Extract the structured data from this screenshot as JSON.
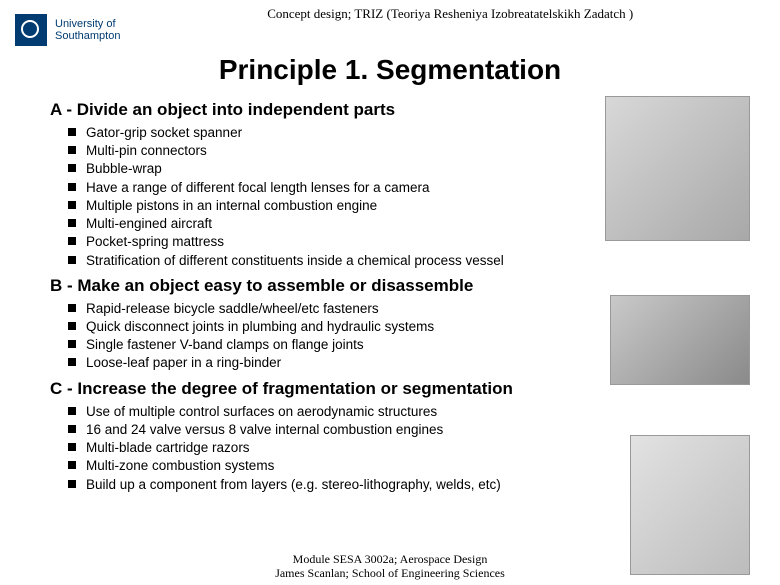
{
  "header": {
    "logo_line1": "University of",
    "logo_line2": "Southampton",
    "subtitle": "Concept design; TRIZ (Teoriya Resheniya Izobreatatelskikh Zadatch )"
  },
  "title": "Principle 1. Segmentation",
  "sections": {
    "a": {
      "heading": "A - Divide an object into independent parts",
      "items": [
        "Gator-grip socket spanner",
        "Multi-pin connectors",
        "Bubble-wrap",
        "Have a range of different focal length lenses for a camera",
        "Multiple pistons in an internal combustion engine",
        "Multi-engined aircraft",
        "Pocket-spring mattress",
        "Stratification of different constituents inside a chemical process vessel"
      ]
    },
    "b": {
      "heading": "B - Make an object easy to assemble or disassemble",
      "items": [
        "Rapid-release bicycle saddle/wheel/etc fasteners",
        "Quick disconnect joints in plumbing and hydraulic systems",
        "Single fastener V-band clamps on flange joints",
        "Loose-leaf paper in a ring-binder"
      ]
    },
    "c": {
      "heading": "C - Increase the degree of fragmentation or segmentation",
      "items": [
        "Use of multiple control surfaces on aerodynamic structures",
        "16 and 24 valve versus 8 valve internal combustion engines",
        "Multi-blade cartridge razors",
        "Multi-zone combustion systems",
        "Build up a component from layers (e.g. stereo-lithography, welds, etc)"
      ]
    }
  },
  "footer": {
    "line1": "Module SESA 3002a; Aerospace Design",
    "line2": "James Scanlan; School of Engineering Sciences"
  }
}
